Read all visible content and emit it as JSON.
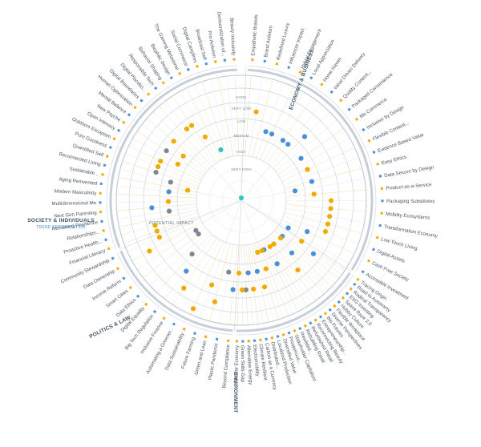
{
  "colors": {
    "accent_blue": "#4a90d9",
    "accent_orange": "#f2a900",
    "gray": "#7d8893",
    "teal": "#2cc7c4",
    "label": "#4a5560",
    "grid": "#cfd6dc",
    "minor": "#e6eaee"
  },
  "center_label": "POTENTIAL IMPACT",
  "ring_labels": [
    "NONE",
    "VERY LOW",
    "LOW",
    "MEDIUM",
    "HIGH",
    "VERY HIGH"
  ],
  "legend_note": "TREND SEGMENTATION",
  "sectors": [
    {
      "name": "ECONOMY & BUSINESS",
      "trends": [
        "Empathetic Brands",
        "Brand Activism",
        "Redefined Luxury",
        "Influencer Impact",
        "Hybrid Engagement",
        "Local Appreciation",
        "Home Haven",
        "Value Driven Delivery",
        "Quality Content...",
        "Packaged Convenience",
        "Me Commerce",
        "Inclusive by Design",
        "Flexible Content...",
        "Evidence Based Value",
        "Easy Ethics",
        "Data Secure by Design",
        "Product-as-a-Service",
        "Packaging Substitutes",
        "Mobility Ecosystems",
        "Transformation Economy",
        "Low Touch Living",
        "Digital Assets",
        "Cash Free Society",
        "Accessible Investment"
      ]
    },
    {
      "name": "ENVIRONMENT",
      "trends": [
        "Tracing Origin",
        "Road to Autonomy",
        "Radical Transparency",
        "ESG Investing",
        "Space Race 2.0",
        "Hobby Culture",
        "Flexible Workplace",
        "Diverse Perspectives",
        "Bio Futures",
        "Entrepreneurship...",
        "Reconnecting Beauty",
        "Refurbished Retail",
        "Rebuilding Retail",
        "Rewilded...",
        "Stakeholder Capitalism",
        "Prosperous...",
        "Diversified Value",
        "Localized Production",
        "Distributed...",
        "Carbon as a Currency",
        "Climate Resilient",
        "Electromobility",
        "Alternative Energy",
        "Green Skills Gap",
        "Circular Economy"
      ]
    },
    {
      "name": "POLITICS & LAW",
      "trends": [
        "Beyond Compliance",
        "Plastic Pandemic",
        "Green and Lean",
        "Future Farming",
        "Data Sustainability",
        "Automating a Greener...",
        "Inclusive Finance",
        "Big Tech Regulation",
        "Digital Equality",
        "Data Ethics",
        "Smart Cities",
        "Income Reform",
        "Data Ownership",
        "Community Stewardship"
      ]
    },
    {
      "name": "SOCIETY & INDIVIDUALS",
      "trends": [
        "Financial Literacy",
        "Proactive Health...",
        "Relationships...",
        "Reframing Resilience",
        "Next Gen Parenting",
        "Multidimensional Me",
        "Modern Masculinity",
        "Aging Reinvented",
        "Sustainable...",
        "Reconnected Living",
        "Quantified Self",
        "Pure Goodness",
        "Outdoors Escapism",
        "Open Intimacy",
        "New Psyche",
        "Mental Balance",
        "Human Optimization",
        "Digital Boundaries",
        "Digital Placebo...",
        "Responsible Tech",
        "Behavior Shaping",
        "Biophilic Design",
        "The Gaming Metaverse",
        "Social Commerce",
        "Digital Campfires",
        "Broadcast Self",
        "Pro-Activism",
        "Democratization of...",
        "Beauty Inclusivity"
      ]
    }
  ],
  "dots": [
    {
      "sector": 0,
      "trend": 1,
      "level": "MEDIUM",
      "color": "accent_orange"
    },
    {
      "sector": 0,
      "trend": 3,
      "level": "HIGH",
      "color": "accent_blue"
    },
    {
      "sector": 0,
      "trend": 4,
      "level": "HIGH",
      "color": "accent_blue"
    },
    {
      "sector": 0,
      "trend": 6,
      "level": "HIGH",
      "color": "accent_blue"
    },
    {
      "sector": 0,
      "trend": 7,
      "level": "HIGH",
      "color": "accent_blue"
    },
    {
      "sector": 0,
      "trend": 8,
      "level": "MEDIUM",
      "color": "accent_blue"
    },
    {
      "sector": 0,
      "trend": 10,
      "level": "HIGH",
      "color": "accent_blue"
    },
    {
      "sector": 0,
      "trend": 12,
      "level": "HIGH",
      "color": "accent_orange"
    },
    {
      "sector": 0,
      "trend": 14,
      "level": "HIGH",
      "color": "accent_blue"
    },
    {
      "sector": 0,
      "trend": 15,
      "level": "VERY HIGH",
      "color": "accent_blue"
    },
    {
      "sector": 0,
      "trend": 16,
      "level": "HIGH",
      "color": "accent_orange"
    },
    {
      "sector": 0,
      "trend": 17,
      "level": "MEDIUM",
      "color": "accent_orange"
    },
    {
      "sector": 0,
      "trend": 18,
      "level": "MEDIUM",
      "color": "accent_orange"
    },
    {
      "sector": 0,
      "trend": 19,
      "level": "MEDIUM",
      "color": "accent_orange"
    },
    {
      "sector": 0,
      "trend": 20,
      "level": "MEDIUM",
      "color": "accent_orange"
    },
    {
      "sector": 0,
      "trend": 21,
      "level": "MEDIUM",
      "color": "accent_orange"
    },
    {
      "sector": 0,
      "trend": 22,
      "level": "HIGH",
      "color": "accent_blue"
    },
    {
      "sector": 0,
      "trend": 23,
      "level": "VERY HIGH",
      "color": "accent_blue"
    },
    {
      "sector": 1,
      "trend": 0,
      "level": "HIGH",
      "color": "accent_orange"
    },
    {
      "sector": 1,
      "trend": 1,
      "level": "MEDIUM",
      "color": "accent_blue"
    },
    {
      "sector": 1,
      "trend": 3,
      "level": "VERY HIGH",
      "color": "accent_blue"
    },
    {
      "sector": 1,
      "trend": 4,
      "level": "VERY HIGH",
      "color": "accent_orange"
    },
    {
      "sector": 1,
      "trend": 5,
      "level": "HIGH",
      "color": "accent_blue"
    },
    {
      "sector": 1,
      "trend": 7,
      "level": "MEDIUM",
      "color": "accent_orange"
    },
    {
      "sector": 1,
      "trend": 8,
      "level": "VERY HIGH",
      "color": "accent_orange"
    },
    {
      "sector": 1,
      "trend": 10,
      "level": "VERY HIGH",
      "color": "accent_orange"
    },
    {
      "sector": 1,
      "trend": 11,
      "level": "HIGH",
      "color": "accent_blue"
    },
    {
      "sector": 1,
      "trend": 13,
      "level": "VERY HIGH",
      "color": "accent_blue"
    },
    {
      "sector": 1,
      "trend": 14,
      "level": "VERY HIGH",
      "color": "accent_orange"
    },
    {
      "sector": 1,
      "trend": 15,
      "level": "HIGH",
      "color": "accent_orange"
    },
    {
      "sector": 1,
      "trend": 16,
      "level": "VERY HIGH",
      "color": "accent_orange"
    },
    {
      "sector": 1,
      "trend": 17,
      "level": "MEDIUM",
      "color": "accent_orange"
    },
    {
      "sector": 1,
      "trend": 18,
      "level": "HIGH",
      "color": "accent_blue"
    },
    {
      "sector": 1,
      "trend": 20,
      "level": "MEDIUM",
      "color": "accent_orange"
    },
    {
      "sector": 1,
      "trend": 21,
      "level": "HIGH",
      "color": "accent_blue"
    },
    {
      "sector": 1,
      "trend": 22,
      "level": "MEDIUM",
      "color": "gray"
    },
    {
      "sector": 1,
      "trend": 23,
      "level": "MEDIUM",
      "color": "accent_orange"
    },
    {
      "sector": 1,
      "trend": 24,
      "level": "HIGH",
      "color": "accent_orange"
    },
    {
      "sector": 2,
      "trend": 0,
      "level": "MEDIUM",
      "color": "accent_blue"
    },
    {
      "sector": 2,
      "trend": 1,
      "level": "HIGH",
      "color": "gray"
    },
    {
      "sector": 2,
      "trend": 2,
      "level": "LOW",
      "color": "accent_orange"
    },
    {
      "sector": 2,
      "trend": 3,
      "level": "MEDIUM",
      "color": "accent_orange"
    },
    {
      "sector": 2,
      "trend": 4,
      "level": "VERY LOW",
      "color": "accent_orange"
    },
    {
      "sector": 2,
      "trend": 6,
      "level": "LOW",
      "color": "accent_orange"
    },
    {
      "sector": 2,
      "trend": 7,
      "level": "MEDIUM",
      "color": "accent_blue"
    },
    {
      "sector": 2,
      "trend": 8,
      "level": "HIGH",
      "color": "gray"
    },
    {
      "sector": 2,
      "trend": 10,
      "level": "VERY HIGH",
      "color": "gray"
    },
    {
      "sector": 2,
      "trend": 11,
      "level": "VERY HIGH",
      "color": "gray"
    },
    {
      "sector": 2,
      "trend": 12,
      "level": "LOW",
      "color": "accent_orange"
    },
    {
      "sector": 2,
      "trend": 13,
      "level": "MEDIUM",
      "color": "accent_orange"
    },
    {
      "sector": 3,
      "trend": 0,
      "level": "MEDIUM",
      "color": "accent_orange"
    },
    {
      "sector": 3,
      "trend": 1,
      "level": "MEDIUM",
      "color": "accent_orange"
    },
    {
      "sector": 3,
      "trend": 3,
      "level": "HIGH",
      "color": "gray"
    },
    {
      "sector": 3,
      "trend": 4,
      "level": "MEDIUM",
      "color": "accent_blue"
    },
    {
      "sector": 3,
      "trend": 5,
      "level": "HIGH",
      "color": "accent_orange"
    },
    {
      "sector": 3,
      "trend": 7,
      "level": "HIGH",
      "color": "accent_blue"
    },
    {
      "sector": 3,
      "trend": 8,
      "level": "VERY HIGH",
      "color": "accent_orange"
    },
    {
      "sector": 3,
      "trend": 9,
      "level": "HIGH",
      "color": "gray"
    },
    {
      "sector": 3,
      "trend": 10,
      "level": "MEDIUM",
      "color": "gray"
    },
    {
      "sector": 3,
      "trend": 11,
      "level": "MEDIUM",
      "color": "accent_orange"
    },
    {
      "sector": 3,
      "trend": 12,
      "level": "MEDIUM",
      "color": "accent_orange"
    },
    {
      "sector": 3,
      "trend": 13,
      "level": "HIGH",
      "color": "accent_orange"
    },
    {
      "sector": 3,
      "trend": 14,
      "level": "MEDIUM",
      "color": "gray"
    },
    {
      "sector": 3,
      "trend": 15,
      "level": "HIGH",
      "color": "accent_orange"
    },
    {
      "sector": 3,
      "trend": 16,
      "level": "MEDIUM",
      "color": "accent_orange"
    },
    {
      "sector": 3,
      "trend": 19,
      "level": "MEDIUM",
      "color": "accent_orange"
    },
    {
      "sector": 3,
      "trend": 20,
      "level": "MEDIUM",
      "color": "accent_orange"
    },
    {
      "sector": 3,
      "trend": 21,
      "level": "HIGH",
      "color": "accent_orange"
    },
    {
      "sector": 3,
      "trend": 23,
      "level": "VERY HIGH",
      "color": "teal"
    }
  ]
}
